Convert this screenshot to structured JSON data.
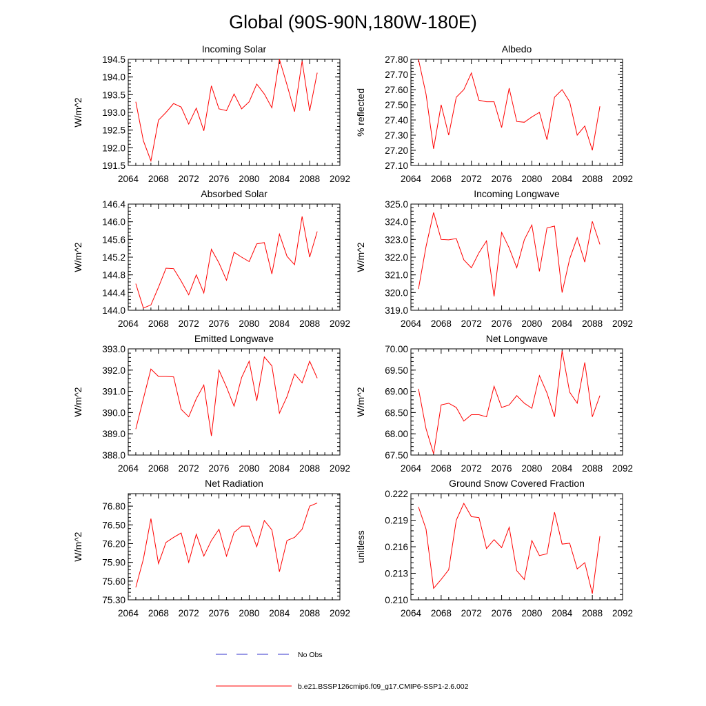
{
  "figure_title": "Global (90S-90N,180W-180E)",
  "colors": {
    "series": "#ff0000",
    "obs": "#3333cc",
    "axis": "#000000"
  },
  "legend": {
    "obs_label": "No Obs",
    "model_label": "b.e21.BSSP126cmip6.f09_g17.CMIP6-SSP1-2.6.002"
  },
  "chart_data": [
    {
      "type": "line",
      "title": "Incoming Solar",
      "ylabel": "W/m^2",
      "xlim": [
        2064,
        2092
      ],
      "xticks": [
        2064,
        2068,
        2072,
        2076,
        2080,
        2084,
        2088,
        2092
      ],
      "ylim": [
        191.5,
        194.5
      ],
      "ytick_labels": [
        "191.5",
        "192.0",
        "192.5",
        "193.0",
        "193.5",
        "194.0",
        "194.5"
      ],
      "x": [
        2065,
        2066,
        2067,
        2068,
        2069,
        2070,
        2071,
        2072,
        2073,
        2074,
        2075,
        2076,
        2077,
        2078,
        2079,
        2080,
        2081,
        2082,
        2083,
        2084,
        2085,
        2086,
        2087,
        2088,
        2089
      ],
      "y": [
        193.3,
        192.2,
        191.63,
        192.78,
        193.0,
        193.25,
        193.15,
        192.67,
        193.12,
        192.48,
        193.75,
        193.1,
        193.05,
        193.52,
        193.1,
        193.3,
        193.8,
        193.52,
        193.13,
        194.5,
        193.78,
        193.02,
        194.45,
        193.04,
        194.12
      ]
    },
    {
      "type": "line",
      "title": "Albedo",
      "ylabel": "% reflected",
      "xlim": [
        2064,
        2092
      ],
      "xticks": [
        2064,
        2068,
        2072,
        2076,
        2080,
        2084,
        2088,
        2092
      ],
      "ylim": [
        27.1,
        27.8
      ],
      "ytick_labels": [
        "27.10",
        "27.20",
        "27.30",
        "27.40",
        "27.50",
        "27.60",
        "27.70",
        "27.80"
      ],
      "x": [
        2065,
        2066,
        2067,
        2068,
        2069,
        2070,
        2071,
        2072,
        2073,
        2074,
        2075,
        2076,
        2077,
        2078,
        2079,
        2080,
        2081,
        2082,
        2083,
        2084,
        2085,
        2086,
        2087,
        2088,
        2089
      ],
      "y": [
        27.8,
        27.57,
        27.21,
        27.5,
        27.3,
        27.55,
        27.6,
        27.71,
        27.53,
        27.52,
        27.52,
        27.35,
        27.61,
        27.39,
        27.385,
        27.42,
        27.45,
        27.27,
        27.55,
        27.6,
        27.52,
        27.3,
        27.36,
        27.2,
        27.49
      ]
    },
    {
      "type": "line",
      "title": "Absorbed Solar",
      "ylabel": "W/m^2",
      "xlim": [
        2064,
        2092
      ],
      "xticks": [
        2064,
        2068,
        2072,
        2076,
        2080,
        2084,
        2088,
        2092
      ],
      "ylim": [
        144.0,
        146.4
      ],
      "ytick_labels": [
        "144.0",
        "144.4",
        "144.8",
        "145.2",
        "145.6",
        "146.0",
        "146.4"
      ],
      "x": [
        2065,
        2066,
        2067,
        2068,
        2069,
        2070,
        2071,
        2072,
        2073,
        2074,
        2075,
        2076,
        2077,
        2078,
        2079,
        2080,
        2081,
        2082,
        2083,
        2084,
        2085,
        2086,
        2087,
        2088,
        2089
      ],
      "y": [
        144.6,
        144.05,
        144.12,
        144.52,
        144.95,
        144.94,
        144.66,
        144.35,
        144.8,
        144.39,
        145.38,
        145.07,
        144.68,
        145.31,
        145.2,
        145.1,
        145.5,
        145.53,
        144.82,
        145.72,
        145.22,
        145.03,
        146.12,
        145.2,
        145.78
      ]
    },
    {
      "type": "line",
      "title": "Incoming Longwave",
      "ylabel": "W/m^2",
      "xlim": [
        2064,
        2092
      ],
      "xticks": [
        2064,
        2068,
        2072,
        2076,
        2080,
        2084,
        2088,
        2092
      ],
      "ylim": [
        319.0,
        325.0
      ],
      "ytick_labels": [
        "319.0",
        "320.0",
        "321.0",
        "322.0",
        "323.0",
        "324.0",
        "325.0"
      ],
      "x": [
        2065,
        2066,
        2067,
        2068,
        2069,
        2070,
        2071,
        2072,
        2073,
        2074,
        2075,
        2076,
        2077,
        2078,
        2079,
        2080,
        2081,
        2082,
        2083,
        2084,
        2085,
        2086,
        2087,
        2088,
        2089
      ],
      "y": [
        320.2,
        322.6,
        324.52,
        323.0,
        322.98,
        323.05,
        321.85,
        321.4,
        322.25,
        322.92,
        319.78,
        323.4,
        322.52,
        321.4,
        322.98,
        323.82,
        321.2,
        323.65,
        323.76,
        320.0,
        321.9,
        323.1,
        321.72,
        324.02,
        322.72
      ]
    },
    {
      "type": "line",
      "title": "Emitted Longwave",
      "ylabel": "W/m^2",
      "xlim": [
        2064,
        2092
      ],
      "xticks": [
        2064,
        2068,
        2072,
        2076,
        2080,
        2084,
        2088,
        2092
      ],
      "ylim": [
        388.0,
        393.0
      ],
      "ytick_labels": [
        "388.0",
        "389.0",
        "390.0",
        "391.0",
        "392.0",
        "393.0"
      ],
      "x": [
        2065,
        2066,
        2067,
        2068,
        2069,
        2070,
        2071,
        2072,
        2073,
        2074,
        2075,
        2076,
        2077,
        2078,
        2079,
        2080,
        2081,
        2082,
        2083,
        2084,
        2085,
        2086,
        2087,
        2088,
        2089
      ],
      "y": [
        389.22,
        390.65,
        392.05,
        391.7,
        391.7,
        391.68,
        390.15,
        389.8,
        390.65,
        391.3,
        388.9,
        392.0,
        391.2,
        390.3,
        391.65,
        392.42,
        390.55,
        392.62,
        392.2,
        389.97,
        390.75,
        391.82,
        391.4,
        392.42,
        391.62
      ]
    },
    {
      "type": "line",
      "title": "Net Longwave",
      "ylabel": "W/m^2",
      "xlim": [
        2064,
        2092
      ],
      "xticks": [
        2064,
        2068,
        2072,
        2076,
        2080,
        2084,
        2088,
        2092
      ],
      "ylim": [
        67.5,
        70.0
      ],
      "ytick_labels": [
        "67.50",
        "68.00",
        "68.50",
        "69.00",
        "69.50",
        "70.00"
      ],
      "x": [
        2065,
        2066,
        2067,
        2068,
        2069,
        2070,
        2071,
        2072,
        2073,
        2074,
        2075,
        2076,
        2077,
        2078,
        2079,
        2080,
        2081,
        2082,
        2083,
        2084,
        2085,
        2086,
        2087,
        2088,
        2089
      ],
      "y": [
        69.06,
        68.12,
        67.53,
        68.68,
        68.72,
        68.62,
        68.3,
        68.45,
        68.45,
        68.4,
        69.12,
        68.62,
        68.68,
        68.9,
        68.72,
        68.6,
        69.37,
        68.96,
        68.4,
        69.95,
        68.98,
        68.72,
        69.68,
        68.4,
        68.9
      ]
    },
    {
      "type": "line",
      "title": "Net Radiation",
      "ylabel": "W/m^2",
      "xlim": [
        2064,
        2092
      ],
      "xticks": [
        2064,
        2068,
        2072,
        2076,
        2080,
        2084,
        2088,
        2092
      ],
      "ylim": [
        75.3,
        77.0
      ],
      "ytick_labels": [
        "75.30",
        "75.60",
        "75.90",
        "76.20",
        "76.50",
        "76.80"
      ],
      "x": [
        2065,
        2066,
        2067,
        2068,
        2069,
        2070,
        2071,
        2072,
        2073,
        2074,
        2075,
        2076,
        2077,
        2078,
        2079,
        2080,
        2081,
        2082,
        2083,
        2084,
        2085,
        2086,
        2087,
        2088,
        2089
      ],
      "y": [
        75.5,
        75.95,
        76.6,
        75.88,
        76.22,
        76.3,
        76.37,
        75.9,
        76.35,
        76.0,
        76.25,
        76.43,
        76.0,
        76.38,
        76.48,
        76.48,
        76.15,
        76.57,
        76.42,
        75.75,
        76.25,
        76.3,
        76.43,
        76.8,
        76.85
      ]
    },
    {
      "type": "line",
      "title": "Ground Snow Covered Fraction",
      "ylabel": "unitless",
      "xlim": [
        2064,
        2092
      ],
      "xticks": [
        2064,
        2068,
        2072,
        2076,
        2080,
        2084,
        2088,
        2092
      ],
      "ylim": [
        0.21,
        0.222
      ],
      "ytick_labels": [
        "0.210",
        "0.213",
        "0.216",
        "0.219",
        "0.222"
      ],
      "x": [
        2065,
        2066,
        2067,
        2068,
        2069,
        2070,
        2071,
        2072,
        2073,
        2074,
        2075,
        2076,
        2077,
        2078,
        2079,
        2080,
        2081,
        2082,
        2083,
        2084,
        2085,
        2086,
        2087,
        2088,
        2089
      ],
      "y": [
        0.2205,
        0.218,
        0.2113,
        0.2123,
        0.2134,
        0.219,
        0.2209,
        0.2194,
        0.2193,
        0.2158,
        0.2168,
        0.2159,
        0.2182,
        0.2133,
        0.2123,
        0.2167,
        0.215,
        0.2152,
        0.2199,
        0.2163,
        0.2164,
        0.2135,
        0.2142,
        0.2107,
        0.2172
      ]
    }
  ]
}
